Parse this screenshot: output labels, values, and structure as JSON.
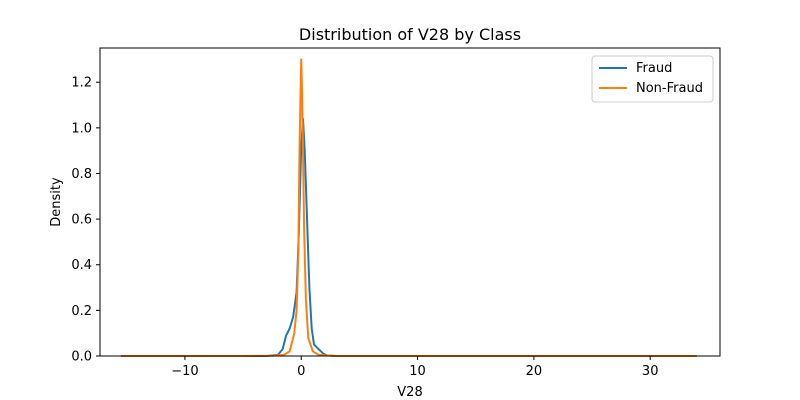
{
  "chart_data": {
    "type": "line",
    "title": "Distribution of V28 by Class",
    "xlabel": "V28",
    "ylabel": "Density",
    "xlim": [
      -17.3,
      36.0
    ],
    "ylim": [
      0,
      1.35
    ],
    "xticks": [
      -10,
      0,
      10,
      20,
      30
    ],
    "yticks": [
      0.0,
      0.2,
      0.4,
      0.6,
      0.8,
      1.0,
      1.2
    ],
    "tick_labels_x": [
      "−10",
      "0",
      "10",
      "20",
      "30"
    ],
    "tick_labels_y": [
      "0.0",
      "0.2",
      "0.4",
      "0.6",
      "0.8",
      "1.0",
      "1.2"
    ],
    "grid": false,
    "legend": "top-right",
    "series": [
      {
        "name": "Fraud",
        "color": "#1f77b4",
        "x": [
          -15.5,
          -5.0,
          -3.0,
          -2.0,
          -1.6,
          -1.3,
          -1.0,
          -0.7,
          -0.4,
          -0.2,
          0.0,
          0.15,
          0.3,
          0.5,
          0.7,
          0.9,
          1.1,
          1.5,
          1.9,
          2.2,
          3.0,
          10.0,
          20.0,
          30.0,
          34.0
        ],
        "y": [
          0.0,
          0.0,
          0.0,
          0.005,
          0.03,
          0.09,
          0.12,
          0.17,
          0.28,
          0.55,
          0.92,
          1.04,
          0.9,
          0.6,
          0.3,
          0.12,
          0.05,
          0.03,
          0.01,
          0.003,
          0.0,
          0.0,
          0.0,
          0.0,
          0.0
        ]
      },
      {
        "name": "Non-Fraud",
        "color": "#ff7f0e",
        "x": [
          -15.5,
          -5.0,
          -2.5,
          -1.5,
          -1.0,
          -0.6,
          -0.4,
          -0.25,
          -0.15,
          -0.05,
          0.0,
          0.05,
          0.15,
          0.25,
          0.4,
          0.6,
          1.0,
          1.5,
          3.0,
          10.0,
          20.0,
          30.0,
          34.0
        ],
        "y": [
          0.0,
          0.0,
          0.001,
          0.005,
          0.02,
          0.1,
          0.2,
          0.45,
          0.9,
          1.18,
          1.3,
          1.2,
          0.9,
          0.55,
          0.25,
          0.08,
          0.02,
          0.005,
          0.0,
          0.0,
          0.0,
          0.0,
          0.0
        ]
      }
    ]
  }
}
